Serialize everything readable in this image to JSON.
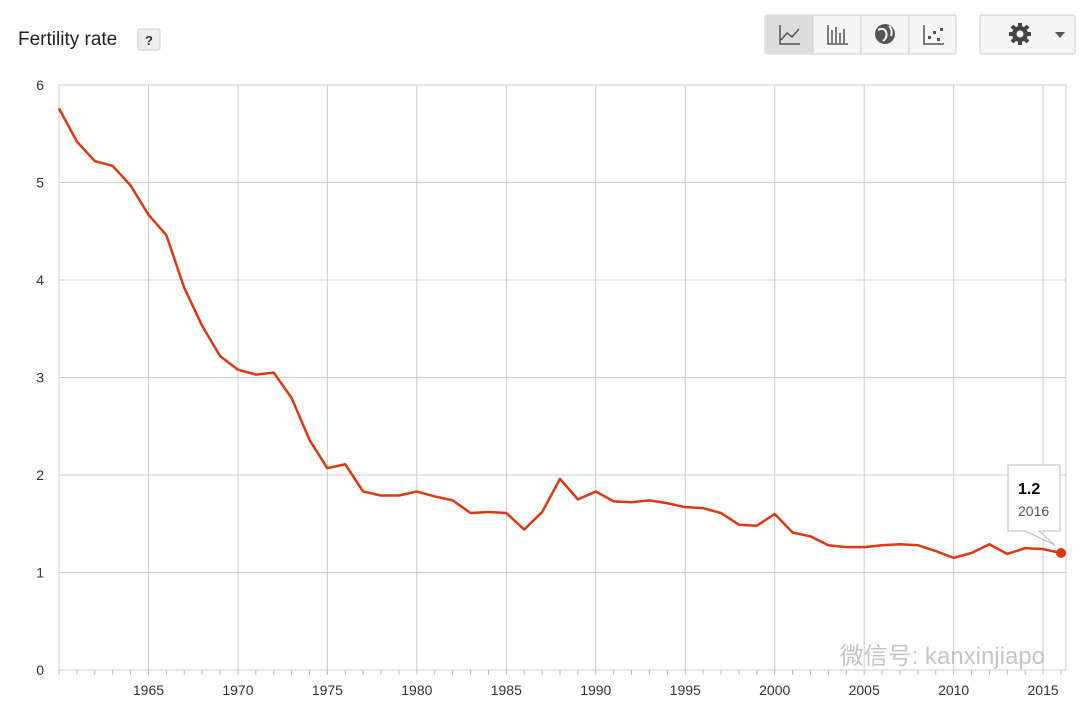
{
  "chart_data": {
    "type": "line",
    "title": "Fertility rate",
    "help_label": "?",
    "watermark": "微信号: kanxinjiapo",
    "x": [
      1960,
      1961,
      1962,
      1963,
      1964,
      1965,
      1966,
      1967,
      1968,
      1969,
      1970,
      1971,
      1972,
      1973,
      1974,
      1975,
      1976,
      1977,
      1978,
      1979,
      1980,
      1981,
      1982,
      1983,
      1984,
      1985,
      1986,
      1987,
      1988,
      1989,
      1990,
      1991,
      1992,
      1993,
      1994,
      1995,
      1996,
      1997,
      1998,
      1999,
      2000,
      2001,
      2002,
      2003,
      2004,
      2005,
      2006,
      2007,
      2008,
      2009,
      2010,
      2011,
      2012,
      2013,
      2014,
      2015,
      2016
    ],
    "series": [
      {
        "color": "#dc3912",
        "values": [
          5.76,
          5.42,
          5.22,
          5.17,
          4.97,
          4.67,
          4.46,
          3.92,
          3.53,
          3.22,
          3.08,
          3.03,
          3.05,
          2.79,
          2.36,
          2.07,
          2.11,
          1.83,
          1.79,
          1.79,
          1.83,
          1.78,
          1.74,
          1.61,
          1.62,
          1.61,
          1.44,
          1.62,
          1.96,
          1.75,
          1.83,
          1.73,
          1.72,
          1.74,
          1.71,
          1.67,
          1.66,
          1.61,
          1.49,
          1.48,
          1.6,
          1.41,
          1.37,
          1.28,
          1.26,
          1.26,
          1.28,
          1.29,
          1.28,
          1.22,
          1.15,
          1.2,
          1.29,
          1.19,
          1.25,
          1.24,
          1.2
        ]
      }
    ],
    "xlim": [
      1960,
      2016
    ],
    "xticks": [
      1965,
      1970,
      1975,
      1980,
      1985,
      1990,
      1995,
      2000,
      2005,
      2010,
      2015
    ],
    "ylim": [
      0,
      6
    ],
    "yticks": [
      0,
      1,
      2,
      3,
      4,
      5,
      6
    ],
    "grid": true
  }
}
